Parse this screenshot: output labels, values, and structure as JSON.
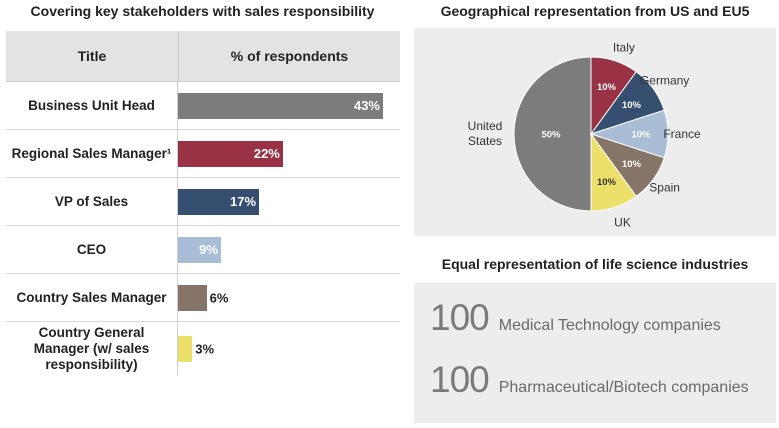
{
  "left_title": "Covering key stakeholders with sales responsibility",
  "table": {
    "col1": "Title",
    "col2": "% of respondents"
  },
  "chart_data": [
    {
      "type": "bar",
      "title": "Covering key stakeholders with sales responsibility",
      "categories": [
        "Business Unit Head",
        "Regional Sales Manager¹",
        "VP of Sales",
        "CEO",
        "Country Sales Manager",
        "Country General Manager (w/ sales responsibility)"
      ],
      "values": [
        43,
        22,
        17,
        9,
        6,
        3
      ],
      "value_labels": [
        "43%",
        "22%",
        "17%",
        "9%",
        "6%",
        "3%"
      ],
      "colors": [
        "#7c7c7c",
        "#9a3246",
        "#364f70",
        "#a9bdd7",
        "#857467",
        "#ece06a"
      ],
      "unit": "%"
    },
    {
      "type": "pie",
      "title": "Geographical representation from US and EU5",
      "labels": [
        "United States",
        "Italy",
        "Germany",
        "France",
        "Spain",
        "UK"
      ],
      "values": [
        50,
        10,
        10,
        10,
        10,
        10
      ],
      "value_labels": [
        "50%",
        "10%",
        "10%",
        "10%",
        "10%",
        "10%"
      ],
      "colors": [
        "#7c7c7c",
        "#9a3246",
        "#364f70",
        "#a9bdd7",
        "#857467",
        "#ece06a"
      ]
    }
  ],
  "industries": {
    "title": "Equal representation of life science industries",
    "rows": [
      {
        "number": "100",
        "label": "Medical Technology companies"
      },
      {
        "number": "100",
        "label": "Pharmaceutical/Biotech companies"
      }
    ]
  }
}
